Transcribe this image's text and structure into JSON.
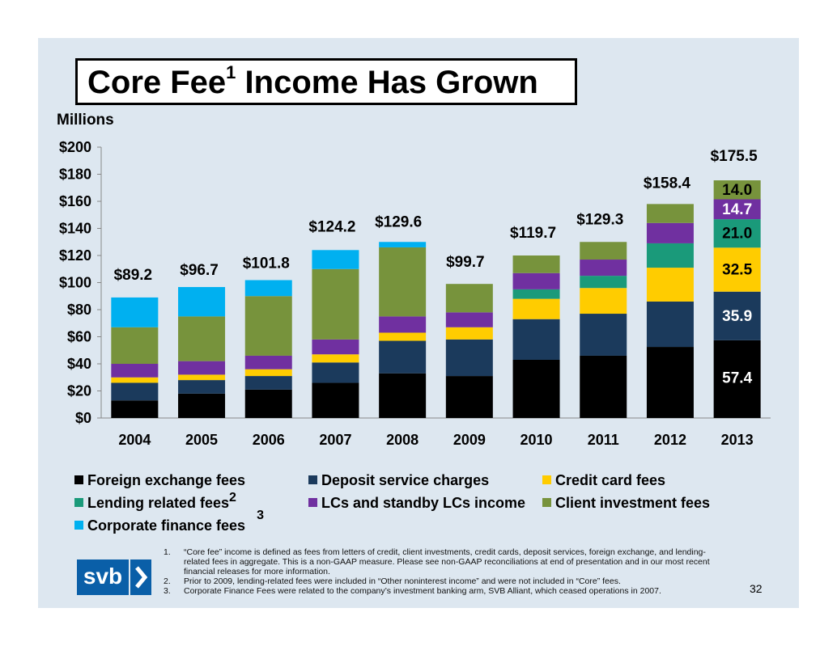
{
  "title": "Core Fee",
  "title_sup": "1",
  "title_rest": " Income Has Grown",
  "units_label": "Millions",
  "page_number": "32",
  "logo_text": "svb",
  "colors": {
    "foreign_exchange": "#000000",
    "deposit_service": "#1b3a5c",
    "credit_card": "#ffcc00",
    "lending_related": "#1a9a7a",
    "lcs_standby": "#7030a0",
    "client_investment": "#77933c",
    "corporate_finance": "#00b0f0"
  },
  "legend": [
    {
      "label": "Foreign exchange fees",
      "color": "#000000",
      "sup": ""
    },
    {
      "label": "Deposit service charges",
      "color": "#1b3a5c",
      "sup": ""
    },
    {
      "label": "Credit card fees",
      "color": "#ffcc00",
      "sup": ""
    },
    {
      "label": "Lending related fees",
      "color": "#1a9a7a",
      "sup": "2"
    },
    {
      "label": "LCs and standby LCs income",
      "color": "#7030a0",
      "sup": ""
    },
    {
      "label": "Client investment fees",
      "color": "#77933c",
      "sup": ""
    },
    {
      "label": "Corporate finance fees",
      "color": "#00b0f0",
      "sup": "3"
    }
  ],
  "footnotes": [
    {
      "num": "1.",
      "text": "“Core fee” income is defined as fees from letters of credit, client investments, credit cards, deposit services, foreign exchange, and lending-related fees in aggregate. This is a non-GAAP measure. Please see non-GAAP reconciliations at end of presentation and in our most recent financial releases for more information."
    },
    {
      "num": "2.",
      "text": "Prior to 2009, lending-related fees were included in “Other noninterest income” and were not included in “Core” fees."
    },
    {
      "num": "3.",
      "text": "Corporate Finance Fees were related to the company’s investment banking arm, SVB Alliant, which ceased operations in 2007."
    }
  ],
  "chart_data": {
    "type": "bar",
    "stacked": true,
    "categories": [
      "2004",
      "2005",
      "2006",
      "2007",
      "2008",
      "2009",
      "2010",
      "2011",
      "2012",
      "2013"
    ],
    "ylim": [
      0,
      200
    ],
    "yticks": [
      "$0",
      "$20",
      "$40",
      "$60",
      "$80",
      "$100",
      "$120",
      "$140",
      "$160",
      "$180",
      "$200"
    ],
    "totals": [
      "$89.2",
      "$96.7",
      "$101.8",
      "$124.2",
      "$129.6",
      "$99.7",
      "$119.7",
      "$129.3",
      "$158.4",
      "$175.5"
    ],
    "series": [
      {
        "name": "Foreign exchange fees",
        "color": "#000000",
        "values": [
          13,
          18,
          21,
          26,
          33,
          31,
          43,
          46,
          52.5,
          57.4
        ]
      },
      {
        "name": "Deposit service charges",
        "color": "#1b3a5c",
        "values": [
          13,
          10,
          10,
          15,
          24,
          27,
          30,
          31,
          33.5,
          35.9
        ]
      },
      {
        "name": "Credit card fees",
        "color": "#ffcc00",
        "values": [
          4,
          4,
          5,
          6,
          6,
          9,
          15,
          19,
          25,
          32.5
        ]
      },
      {
        "name": "Lending related fees",
        "color": "#1a9a7a",
        "values": [
          0,
          0,
          0,
          0,
          0,
          0,
          7,
          9,
          18,
          21.0
        ]
      },
      {
        "name": "LCs and standby LCs income",
        "color": "#7030a0",
        "values": [
          10,
          10,
          10,
          11,
          12,
          11,
          12,
          12,
          15,
          14.7
        ]
      },
      {
        "name": "Client investment fees",
        "color": "#77933c",
        "values": [
          27,
          33,
          44,
          52,
          51,
          21,
          13,
          13,
          14,
          14.0
        ]
      },
      {
        "name": "Corporate finance fees",
        "color": "#00b0f0",
        "values": [
          22,
          21.7,
          11.8,
          14,
          4,
          0,
          0,
          0,
          0,
          0
        ]
      }
    ],
    "segment_labels_2013": [
      "57.4",
      "35.9",
      "32.5",
      "21.0",
      "14.7",
      "14.0"
    ],
    "grid": false
  }
}
